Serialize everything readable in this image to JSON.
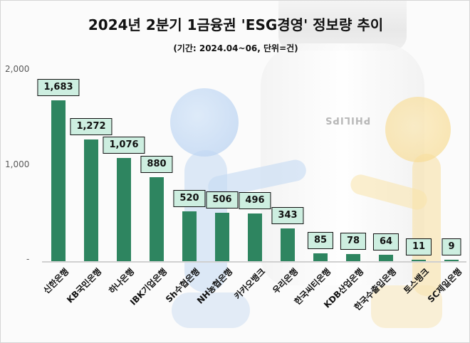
{
  "title": "2024년 2분기 1금융권 'ESG경영' 정보량 추이",
  "subtitle": "(기간: 2024.04~06, 단위=건)",
  "background": {
    "brand_text": "PHILIPS"
  },
  "colors": {
    "bar": "#2e8560",
    "label_bg": "#cdeee0",
    "label_border": "#111111",
    "axis": "#d0d0d0"
  },
  "y_axis": {
    "ticks": [
      "2,000",
      "1,000",
      "-"
    ]
  },
  "chart_data": {
    "type": "bar",
    "title": "2024년 2분기 1금융권 'ESG경영' 정보량 추이",
    "subtitle": "(기간: 2024.04~06, 단위=건)",
    "xlabel": "",
    "ylabel": "",
    "ylim": [
      0,
      2000
    ],
    "yticks": [
      0,
      1000,
      2000
    ],
    "grid": false,
    "legend": null,
    "categories": [
      "신한은행",
      "KB국민은행",
      "하나은행",
      "IBK기업은행",
      "Sh수협은행",
      "NH농협은행",
      "카카오뱅크",
      "우리은행",
      "한국씨티은행",
      "KDB산업은행",
      "한국수출입은행",
      "토스뱅크",
      "SC제일은행"
    ],
    "values": [
      1683,
      1272,
      1076,
      880,
      520,
      506,
      496,
      343,
      85,
      78,
      64,
      11,
      9
    ],
    "value_labels": [
      "1,683",
      "1,272",
      "1,076",
      "880",
      "520",
      "506",
      "496",
      "343",
      "85",
      "78",
      "64",
      "11",
      "9"
    ]
  }
}
